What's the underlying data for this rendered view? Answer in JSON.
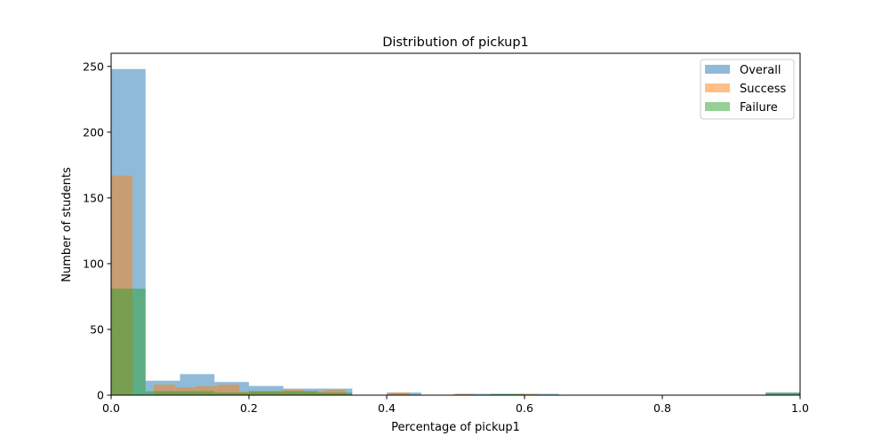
{
  "chart_data": {
    "type": "bar",
    "title": "Distribution of pickup1",
    "xlabel": "Percentage of pickup1",
    "ylabel": "Number of students",
    "xlim": [
      0.0,
      1.0
    ],
    "ylim": [
      0,
      260
    ],
    "x_ticks": [
      0.0,
      0.2,
      0.4,
      0.6,
      0.8,
      1.0
    ],
    "x_tick_labels": [
      "0.0",
      "0.2",
      "0.4",
      "0.6",
      "0.8",
      "1.0"
    ],
    "y_ticks": [
      0,
      50,
      100,
      150,
      200,
      250
    ],
    "y_tick_labels": [
      "0",
      "50",
      "100",
      "150",
      "200",
      "250"
    ],
    "grid": false,
    "legend_position": "top-right",
    "series": [
      {
        "name": "Overall",
        "color": "#1f77b4",
        "alpha": 0.5,
        "bins": [
          {
            "x0": 0.0,
            "x1": 0.05,
            "count": 248
          },
          {
            "x0": 0.05,
            "x1": 0.1,
            "count": 11
          },
          {
            "x0": 0.1,
            "x1": 0.15,
            "count": 16
          },
          {
            "x0": 0.15,
            "x1": 0.2,
            "count": 10
          },
          {
            "x0": 0.2,
            "x1": 0.25,
            "count": 7
          },
          {
            "x0": 0.25,
            "x1": 0.3,
            "count": 5
          },
          {
            "x0": 0.3,
            "x1": 0.35,
            "count": 5
          },
          {
            "x0": 0.35,
            "x1": 0.4,
            "count": 0
          },
          {
            "x0": 0.4,
            "x1": 0.45,
            "count": 2
          },
          {
            "x0": 0.45,
            "x1": 0.5,
            "count": 0
          },
          {
            "x0": 0.5,
            "x1": 0.55,
            "count": 1
          },
          {
            "x0": 0.55,
            "x1": 0.6,
            "count": 1
          },
          {
            "x0": 0.6,
            "x1": 0.65,
            "count": 1
          },
          {
            "x0": 0.65,
            "x1": 0.95,
            "count": 0
          },
          {
            "x0": 0.95,
            "x1": 1.0,
            "count": 2
          }
        ]
      },
      {
        "name": "Success",
        "color": "#ff7f0e",
        "alpha": 0.5,
        "bins": [
          {
            "x0": 0.0,
            "x1": 0.031,
            "count": 167
          },
          {
            "x0": 0.031,
            "x1": 0.062,
            "count": 0
          },
          {
            "x0": 0.062,
            "x1": 0.093,
            "count": 8
          },
          {
            "x0": 0.093,
            "x1": 0.124,
            "count": 6
          },
          {
            "x0": 0.124,
            "x1": 0.155,
            "count": 7
          },
          {
            "x0": 0.155,
            "x1": 0.186,
            "count": 8
          },
          {
            "x0": 0.186,
            "x1": 0.217,
            "count": 3
          },
          {
            "x0": 0.217,
            "x1": 0.248,
            "count": 3
          },
          {
            "x0": 0.248,
            "x1": 0.279,
            "count": 4
          },
          {
            "x0": 0.279,
            "x1": 0.31,
            "count": 3
          },
          {
            "x0": 0.31,
            "x1": 0.341,
            "count": 4
          },
          {
            "x0": 0.341,
            "x1": 0.403,
            "count": 0
          },
          {
            "x0": 0.403,
            "x1": 0.434,
            "count": 2
          },
          {
            "x0": 0.434,
            "x1": 0.496,
            "count": 0
          },
          {
            "x0": 0.496,
            "x1": 0.527,
            "count": 1
          },
          {
            "x0": 0.527,
            "x1": 0.589,
            "count": 0
          },
          {
            "x0": 0.589,
            "x1": 0.62,
            "count": 1
          }
        ]
      },
      {
        "name": "Failure",
        "color": "#2ca02c",
        "alpha": 0.5,
        "bins": [
          {
            "x0": 0.0,
            "x1": 0.05,
            "count": 81
          },
          {
            "x0": 0.05,
            "x1": 0.1,
            "count": 3
          },
          {
            "x0": 0.1,
            "x1": 0.15,
            "count": 3
          },
          {
            "x0": 0.15,
            "x1": 0.2,
            "count": 2
          },
          {
            "x0": 0.2,
            "x1": 0.25,
            "count": 3
          },
          {
            "x0": 0.25,
            "x1": 0.3,
            "count": 3
          },
          {
            "x0": 0.3,
            "x1": 0.35,
            "count": 2
          },
          {
            "x0": 0.35,
            "x1": 0.55,
            "count": 0
          },
          {
            "x0": 0.55,
            "x1": 0.6,
            "count": 1
          },
          {
            "x0": 0.6,
            "x1": 0.95,
            "count": 0
          },
          {
            "x0": 0.95,
            "x1": 1.0,
            "count": 2
          }
        ]
      }
    ]
  }
}
